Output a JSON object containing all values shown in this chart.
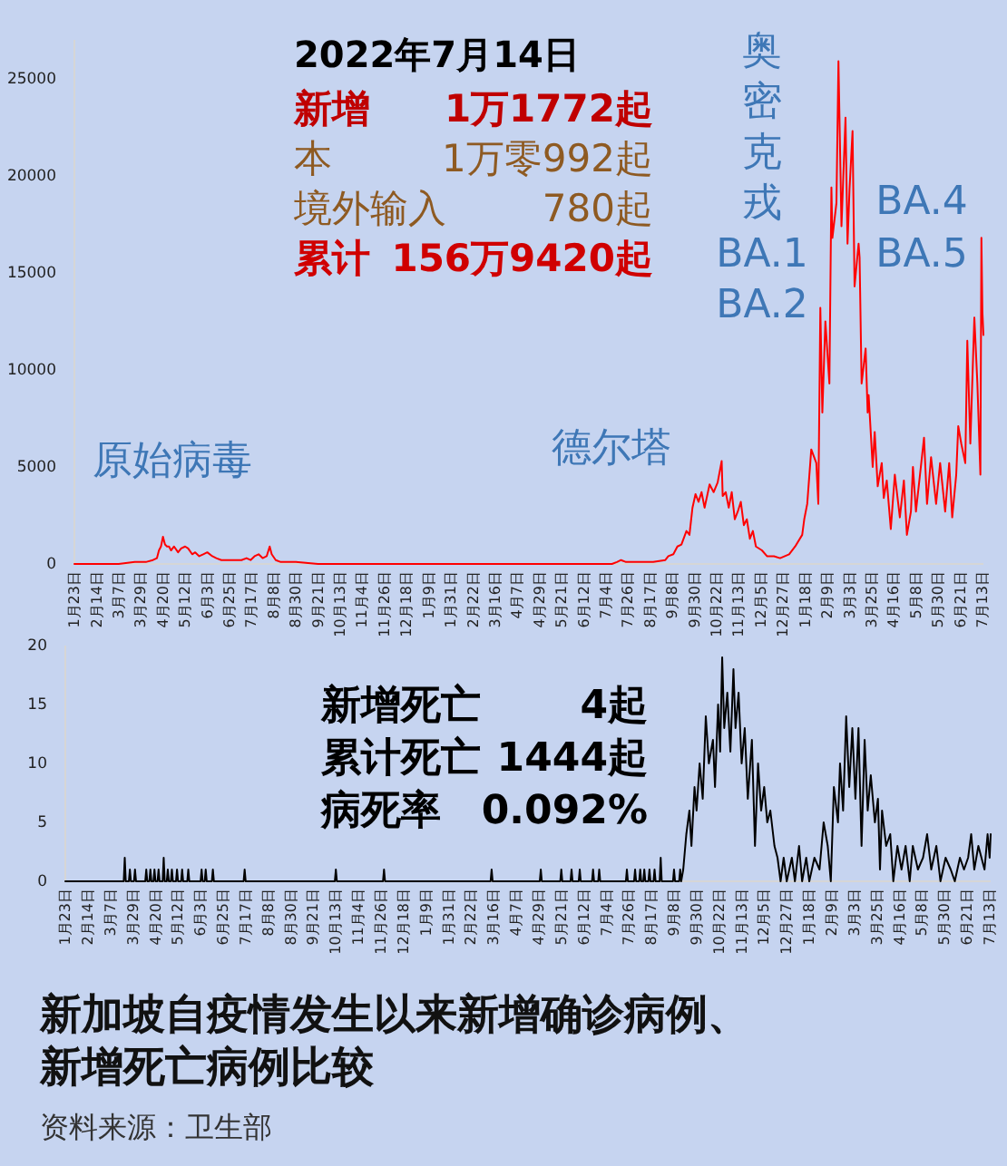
{
  "chart_data": [
    {
      "type": "line",
      "annotations": [
        "2022年7月14日",
        "新增",
        "1万1772起",
        "本",
        "1万零992起",
        "境外输入",
        "780起",
        "累计",
        "156万9420起",
        "原始病毒",
        "德尔塔",
        "奥密克戎",
        "BA.1",
        "BA.2",
        "BA.4",
        "BA.5"
      ],
      "xlim": [
        "2020-01-23",
        "2022-07-14"
      ],
      "xticks": [
        {
          "value": "2020-01-23",
          "label": "1月23日"
        },
        {
          "value": "2020-02-14",
          "label": "2月14日"
        },
        {
          "value": "2020-03-07",
          "label": "3月7日"
        },
        {
          "value": "2020-03-29",
          "label": "3月29日"
        },
        {
          "value": "2020-04-20",
          "label": "4月20日"
        },
        {
          "value": "2020-05-12",
          "label": "5月12日"
        },
        {
          "value": "2020-06-03",
          "label": "6月3日"
        },
        {
          "value": "2020-06-25",
          "label": "6月25日"
        },
        {
          "value": "2020-07-17",
          "label": "7月17日"
        },
        {
          "value": "2020-08-08",
          "label": "8月8日"
        },
        {
          "value": "2020-08-30",
          "label": "8月30日"
        },
        {
          "value": "2020-09-21",
          "label": "9月21日"
        },
        {
          "value": "2020-10-13",
          "label": "10月13日"
        },
        {
          "value": "2020-11-04",
          "label": "11月4日"
        },
        {
          "value": "2020-11-26",
          "label": "11月26日"
        },
        {
          "value": "2020-12-18",
          "label": "12月18日"
        },
        {
          "value": "2021-01-09",
          "label": "1月9日"
        },
        {
          "value": "2021-01-31",
          "label": "1月31日"
        },
        {
          "value": "2021-02-22",
          "label": "2月22日"
        },
        {
          "value": "2021-03-16",
          "label": "3月16日"
        },
        {
          "value": "2021-04-07",
          "label": "4月7日"
        },
        {
          "value": "2021-04-29",
          "label": "4月29日"
        },
        {
          "value": "2021-05-21",
          "label": "5月21日"
        },
        {
          "value": "2021-06-12",
          "label": "6月12日"
        },
        {
          "value": "2021-07-04",
          "label": "7月4日"
        },
        {
          "value": "2021-07-26",
          "label": "7月26日"
        },
        {
          "value": "2021-08-17",
          "label": "8月17日"
        },
        {
          "value": "2021-09-08",
          "label": "9月8日"
        },
        {
          "value": "2021-09-30",
          "label": "9月30日"
        },
        {
          "value": "2021-10-22",
          "label": "10月22日"
        },
        {
          "value": "2021-11-13",
          "label": "11月13日"
        },
        {
          "value": "2021-12-05",
          "label": "12月5日"
        },
        {
          "value": "2021-12-27",
          "label": "12月27日"
        },
        {
          "value": "2022-01-18",
          "label": "1月18日"
        },
        {
          "value": "2022-02-09",
          "label": "2月9日"
        },
        {
          "value": "2022-03-03",
          "label": "3月3日"
        },
        {
          "value": "2022-03-25",
          "label": "3月25日"
        },
        {
          "value": "2022-04-16",
          "label": "4月16日"
        },
        {
          "value": "2022-05-08",
          "label": "5月8日"
        },
        {
          "value": "2022-05-30",
          "label": "5月30日"
        },
        {
          "value": "2022-06-21",
          "label": "6月21日"
        },
        {
          "value": "2022-07-13",
          "label": "7月13日"
        }
      ],
      "ylim": [
        0,
        27000
      ],
      "yticks": [
        0,
        5000,
        10000,
        15000,
        20000,
        25000
      ],
      "series": [
        {
          "color": "#ff0000",
          "x": [
            "2020-01-23",
            "2020-03-07",
            "2020-03-23",
            "2020-04-03",
            "2020-04-10",
            "2020-04-14",
            "2020-04-16",
            "2020-04-18",
            "2020-04-20",
            "2020-04-22",
            "2020-04-24",
            "2020-04-26",
            "2020-04-28",
            "2020-05-01",
            "2020-05-05",
            "2020-05-08",
            "2020-05-12",
            "2020-05-15",
            "2020-05-19",
            "2020-05-22",
            "2020-05-26",
            "2020-05-30",
            "2020-06-03",
            "2020-06-08",
            "2020-06-12",
            "2020-06-17",
            "2020-06-22",
            "2020-06-27",
            "2020-07-02",
            "2020-07-07",
            "2020-07-12",
            "2020-07-16",
            "2020-07-20",
            "2020-07-24",
            "2020-07-28",
            "2020-08-01",
            "2020-08-04",
            "2020-08-06",
            "2020-08-10",
            "2020-08-15",
            "2020-08-30",
            "2020-09-21",
            "2021-07-10",
            "2021-07-15",
            "2021-07-19",
            "2021-07-24",
            "2021-08-20",
            "2021-09-01",
            "2021-09-04",
            "2021-09-09",
            "2021-09-13",
            "2021-09-17",
            "2021-09-22",
            "2021-09-25",
            "2021-09-28",
            "2021-10-01",
            "2021-10-04",
            "2021-10-07",
            "2021-10-10",
            "2021-10-15",
            "2021-10-19",
            "2021-10-23",
            "2021-10-27",
            "2021-10-28",
            "2021-10-31",
            "2021-11-03",
            "2021-11-06",
            "2021-11-09",
            "2021-11-12",
            "2021-11-15",
            "2021-11-18",
            "2021-11-21",
            "2021-11-24",
            "2021-11-27",
            "2021-11-30",
            "2021-12-06",
            "2021-12-11",
            "2021-12-18",
            "2021-12-24",
            "2022-01-02",
            "2022-01-08",
            "2022-01-15",
            "2022-01-17",
            "2022-01-20",
            "2022-01-24",
            "2022-01-29",
            "2022-01-31",
            "2022-02-02",
            "2022-02-04",
            "2022-02-07",
            "2022-02-11",
            "2022-02-13",
            "2022-02-14",
            "2022-02-18",
            "2022-02-20",
            "2022-02-23",
            "2022-02-27",
            "2022-03-01",
            "2022-03-03",
            "2022-03-06",
            "2022-03-08",
            "2022-03-12",
            "2022-03-13",
            "2022-03-15",
            "2022-03-19",
            "2022-03-21",
            "2022-03-22",
            "2022-03-26",
            "2022-03-28",
            "2022-03-31",
            "2022-04-04",
            "2022-04-06",
            "2022-04-09",
            "2022-04-13",
            "2022-04-17",
            "2022-04-22",
            "2022-04-26",
            "2022-04-29",
            "2022-05-03",
            "2022-05-05",
            "2022-05-08",
            "2022-05-12",
            "2022-05-16",
            "2022-05-19",
            "2022-05-23",
            "2022-05-28",
            "2022-06-01",
            "2022-06-06",
            "2022-06-10",
            "2022-06-13",
            "2022-06-17",
            "2022-06-19",
            "2022-06-22",
            "2022-06-26",
            "2022-06-28",
            "2022-07-01",
            "2022-07-05",
            "2022-07-08",
            "2022-07-11",
            "2022-07-12",
            "2022-07-13",
            "2022-07-14"
          ],
          "values": [
            0,
            0,
            100,
            100,
            200,
            300,
            700,
            900,
            1400,
            1000,
            900,
            900,
            700,
            900,
            600,
            800,
            900,
            800,
            500,
            600,
            400,
            500,
            600,
            400,
            300,
            200,
            200,
            200,
            200,
            200,
            300,
            200,
            400,
            500,
            300,
            400,
            900,
            500,
            200,
            100,
            100,
            0,
            0,
            100,
            200,
            100,
            100,
            200,
            400,
            500,
            900,
            1000,
            1700,
            1500,
            2900,
            3600,
            3200,
            3700,
            2900,
            4100,
            3700,
            4200,
            5300,
            3500,
            3700,
            2900,
            3700,
            2300,
            2700,
            3200,
            2000,
            2300,
            1300,
            1700,
            900,
            700,
            400,
            400,
            300,
            500,
            900,
            1500,
            2300,
            3100,
            5900,
            5200,
            3100,
            13200,
            7800,
            12500,
            9300,
            19400,
            16800,
            18600,
            25900,
            17400,
            23000,
            16500,
            19300,
            22300,
            14300,
            16500,
            15800,
            9300,
            11100,
            7800,
            8700,
            5000,
            6800,
            4000,
            5200,
            3400,
            4300,
            1800,
            4600,
            2400,
            4300,
            1500,
            2700,
            5000,
            2700,
            4600,
            6500,
            3100,
            5500,
            3100,
            5200,
            2700,
            5200,
            2400,
            4600,
            7100,
            6200,
            5200,
            11500,
            6200,
            12700,
            9300,
            4600,
            16800,
            13000,
            11800
          ]
        }
      ]
    },
    {
      "type": "line",
      "title": "新加坡自疫情发生以来新增确诊病例、新增死亡病例比较",
      "annotations": [
        "新增死亡",
        "4起",
        "累计死亡",
        "1444起",
        "病死率",
        "0.092%",
        "资料来源：卫生部"
      ],
      "xlim": [
        "2020-01-23",
        "2022-07-14"
      ],
      "xticks": [
        {
          "value": "2020-01-23",
          "label": "1月23日"
        },
        {
          "value": "2020-02-14",
          "label": "2月14日"
        },
        {
          "value": "2020-03-07",
          "label": "3月7日"
        },
        {
          "value": "2020-03-29",
          "label": "3月29日"
        },
        {
          "value": "2020-04-20",
          "label": "4月20日"
        },
        {
          "value": "2020-05-12",
          "label": "5月12日"
        },
        {
          "value": "2020-06-03",
          "label": "6月3日"
        },
        {
          "value": "2020-06-25",
          "label": "6月25日"
        },
        {
          "value": "2020-07-17",
          "label": "7月17日"
        },
        {
          "value": "2020-08-08",
          "label": "8月8日"
        },
        {
          "value": "2020-08-30",
          "label": "8月30日"
        },
        {
          "value": "2020-09-21",
          "label": "9月21日"
        },
        {
          "value": "2020-10-13",
          "label": "10月13日"
        },
        {
          "value": "2020-11-04",
          "label": "11月4日"
        },
        {
          "value": "2020-11-26",
          "label": "11月26日"
        },
        {
          "value": "2020-12-18",
          "label": "12月18日"
        },
        {
          "value": "2021-01-09",
          "label": "1月9日"
        },
        {
          "value": "2021-01-31",
          "label": "1月31日"
        },
        {
          "value": "2021-02-22",
          "label": "2月22日"
        },
        {
          "value": "2021-03-16",
          "label": "3月16日"
        },
        {
          "value": "2021-04-07",
          "label": "4月7日"
        },
        {
          "value": "2021-04-29",
          "label": "4月29日"
        },
        {
          "value": "2021-05-21",
          "label": "5月21日"
        },
        {
          "value": "2021-06-12",
          "label": "6月12日"
        },
        {
          "value": "2021-07-04",
          "label": "7月4日"
        },
        {
          "value": "2021-07-26",
          "label": "7月26日"
        },
        {
          "value": "2021-08-17",
          "label": "8月17日"
        },
        {
          "value": "2021-09-08",
          "label": "9月8日"
        },
        {
          "value": "2021-09-30",
          "label": "9月30日"
        },
        {
          "value": "2021-10-22",
          "label": "10月22日"
        },
        {
          "value": "2021-11-13",
          "label": "11月13日"
        },
        {
          "value": "2021-12-05",
          "label": "12月5日"
        },
        {
          "value": "2021-12-27",
          "label": "12月27日"
        },
        {
          "value": "2022-01-18",
          "label": "1月18日"
        },
        {
          "value": "2022-02-09",
          "label": "2月9日"
        },
        {
          "value": "2022-03-03",
          "label": "3月3日"
        },
        {
          "value": "2022-03-25",
          "label": "3月25日"
        },
        {
          "value": "2022-04-16",
          "label": "4月16日"
        },
        {
          "value": "2022-05-08",
          "label": "5月8日"
        },
        {
          "value": "2022-05-30",
          "label": "5月30日"
        },
        {
          "value": "2022-06-21",
          "label": "6月21日"
        },
        {
          "value": "2022-07-13",
          "label": "7月13日"
        }
      ],
      "ylim": [
        0,
        20
      ],
      "yticks": [
        0,
        5,
        10,
        15,
        20
      ],
      "series": [
        {
          "color": "#000000",
          "x": [
            "2020-01-23",
            "2020-03-20",
            "2020-03-21",
            "2020-03-22",
            "2020-03-25",
            "2020-03-26",
            "2020-03-27",
            "2020-03-30",
            "2020-03-31",
            "2020-04-01",
            "2020-04-10",
            "2020-04-11",
            "2020-04-12",
            "2020-04-14",
            "2020-04-15",
            "2020-04-16",
            "2020-04-18",
            "2020-04-19",
            "2020-04-20",
            "2020-04-22",
            "2020-04-23",
            "2020-04-24",
            "2020-04-27",
            "2020-04-28",
            "2020-04-29",
            "2020-05-01",
            "2020-05-02",
            "2020-05-03",
            "2020-05-05",
            "2020-05-06",
            "2020-05-07",
            "2020-05-10",
            "2020-05-11",
            "2020-05-12",
            "2020-05-15",
            "2020-05-16",
            "2020-05-17",
            "2020-05-21",
            "2020-05-22",
            "2020-05-23",
            "2020-06-03",
            "2020-06-04",
            "2020-06-05",
            "2020-06-07",
            "2020-06-08",
            "2020-06-09",
            "2020-06-14",
            "2020-06-15",
            "2020-06-16",
            "2020-07-15",
            "2020-07-16",
            "2020-07-17",
            "2020-10-12",
            "2020-10-13",
            "2020-10-14",
            "2020-11-28",
            "2020-11-29",
            "2020-11-30",
            "2021-03-13",
            "2021-03-14",
            "2021-03-15",
            "2021-04-30",
            "2021-05-01",
            "2021-05-02",
            "2021-05-20",
            "2021-05-21",
            "2021-05-22",
            "2021-05-30",
            "2021-05-31",
            "2021-06-01",
            "2021-06-07",
            "2021-06-08",
            "2021-06-09",
            "2021-06-20",
            "2021-06-21",
            "2021-06-22",
            "2021-06-26",
            "2021-06-27",
            "2021-06-28",
            "2021-07-23",
            "2021-07-24",
            "2021-07-25",
            "2021-07-31",
            "2021-08-01",
            "2021-08-02",
            "2021-08-05",
            "2021-08-06",
            "2021-08-07",
            "2021-08-09",
            "2021-08-10",
            "2021-08-11",
            "2021-08-14",
            "2021-08-15",
            "2021-08-16",
            "2021-08-19",
            "2021-08-20",
            "2021-08-21",
            "2021-08-25",
            "2021-08-26",
            "2021-08-27",
            "2021-09-07",
            "2021-09-08",
            "2021-09-09",
            "2021-09-13",
            "2021-09-14",
            "2021-09-15",
            "2021-09-17",
            "2021-09-20",
            "2021-09-23",
            "2021-09-25",
            "2021-09-28",
            "2021-09-30",
            "2021-10-03",
            "2021-10-06",
            "2021-10-09",
            "2021-10-12",
            "2021-10-16",
            "2021-10-18",
            "2021-10-21",
            "2021-10-23",
            "2021-10-25",
            "2021-10-27",
            "2021-10-30",
            "2021-11-02",
            "2021-11-05",
            "2021-11-07",
            "2021-11-10",
            "2021-11-13",
            "2021-11-16",
            "2021-11-19",
            "2021-11-23",
            "2021-11-26",
            "2021-11-29",
            "2021-12-02",
            "2021-12-05",
            "2021-12-08",
            "2021-12-11",
            "2021-12-15",
            "2021-12-18",
            "2021-12-21",
            "2021-12-24",
            "2021-12-27",
            "2022-01-01",
            "2022-01-04",
            "2022-01-08",
            "2022-01-11",
            "2022-01-15",
            "2022-01-18",
            "2022-01-23",
            "2022-01-28",
            "2022-02-01",
            "2022-02-05",
            "2022-02-08",
            "2022-02-11",
            "2022-02-15",
            "2022-02-17",
            "2022-02-20",
            "2022-02-23",
            "2022-02-26",
            "2022-03-01",
            "2022-03-04",
            "2022-03-07",
            "2022-03-10",
            "2022-03-13",
            "2022-03-16",
            "2022-03-19",
            "2022-03-23",
            "2022-03-26",
            "2022-03-28",
            "2022-03-30",
            "2022-04-03",
            "2022-04-07",
            "2022-04-10",
            "2022-04-14",
            "2022-04-18",
            "2022-04-22",
            "2022-04-26",
            "2022-04-29",
            "2022-05-04",
            "2022-05-09",
            "2022-05-13",
            "2022-05-17",
            "2022-05-22",
            "2022-05-26",
            "2022-05-31",
            "2022-06-05",
            "2022-06-09",
            "2022-06-14",
            "2022-06-18",
            "2022-06-22",
            "2022-06-25",
            "2022-06-28",
            "2022-07-02",
            "2022-07-05",
            "2022-07-08",
            "2022-07-11",
            "2022-07-13",
            "2022-07-14"
          ],
          "values": [
            0,
            0,
            2,
            0,
            0,
            1,
            0,
            0,
            1,
            0,
            0,
            1,
            0,
            0,
            1,
            0,
            0,
            1,
            0,
            0,
            1,
            0,
            0,
            2,
            0,
            0,
            1,
            0,
            0,
            1,
            0,
            0,
            1,
            0,
            0,
            1,
            0,
            0,
            1,
            0,
            0,
            1,
            0,
            0,
            1,
            0,
            0,
            1,
            0,
            0,
            1,
            0,
            0,
            1,
            0,
            0,
            1,
            0,
            0,
            1,
            0,
            0,
            1,
            0,
            0,
            1,
            0,
            0,
            1,
            0,
            0,
            1,
            0,
            0,
            1,
            0,
            0,
            1,
            0,
            0,
            1,
            0,
            0,
            1,
            0,
            0,
            1,
            0,
            0,
            1,
            0,
            0,
            1,
            0,
            0,
            1,
            0,
            0,
            2,
            0,
            0,
            1,
            0,
            0,
            1,
            0,
            1,
            4,
            6,
            3,
            8,
            6,
            10,
            7,
            14,
            10,
            12,
            8,
            15,
            11,
            19,
            13,
            16,
            11,
            18,
            13,
            16,
            10,
            13,
            7,
            12,
            3,
            10,
            6,
            8,
            5,
            6,
            3,
            2,
            0,
            2,
            0,
            2,
            0,
            3,
            0,
            2,
            0,
            2,
            1,
            5,
            3,
            0,
            8,
            5,
            10,
            6,
            14,
            8,
            13,
            7,
            13,
            3,
            12,
            6,
            9,
            5,
            7,
            1,
            6,
            3,
            4,
            0,
            3,
            1,
            3,
            0,
            3,
            1,
            2,
            4,
            1,
            3,
            0,
            2,
            1,
            0,
            2,
            1,
            2,
            4,
            1,
            3,
            2,
            1,
            4,
            2,
            4
          ]
        }
      ]
    }
  ]
}
